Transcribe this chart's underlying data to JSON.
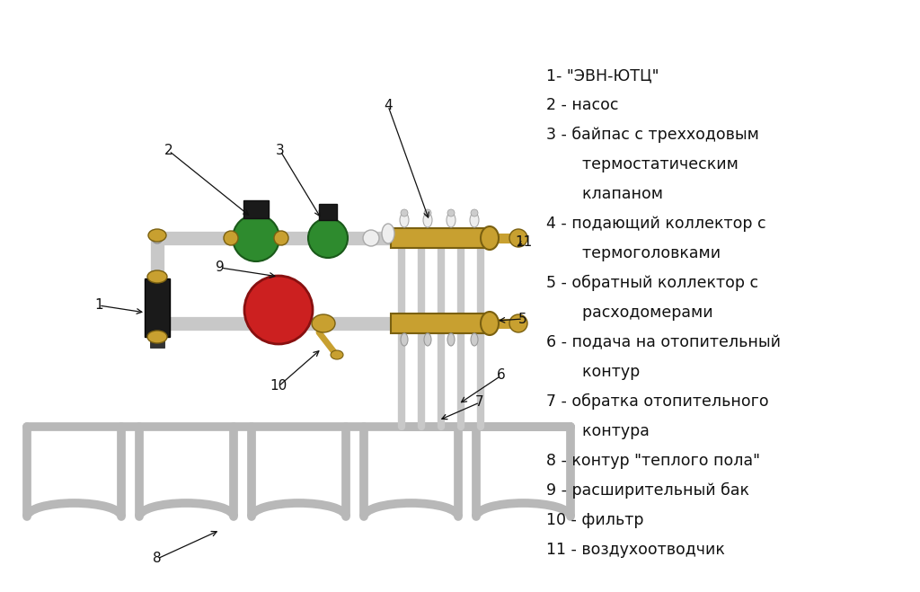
{
  "background_color": "#ffffff",
  "pipe_color": "#c8c8c8",
  "pipe_edge": "#909090",
  "brass_color": "#c8a030",
  "brass_edge": "#7a6010",
  "green_color": "#2e8b2e",
  "green_edge": "#1a5a1a",
  "red_color": "#cc2020",
  "red_edge": "#881010",
  "black_color": "#1a1a1a",
  "white_color": "#eeeeee",
  "label_color": "#111111",
  "label_fontsize": 12.5,
  "legend_entries": [
    [
      "1- \"ЭВН-ЮТЦ\"",
      0
    ],
    [
      "2 - насос",
      0
    ],
    [
      "3 - байпас с трехходовым",
      0
    ],
    [
      "    термостатическим",
      1
    ],
    [
      "    клапаном",
      1
    ],
    [
      "4 - подающий коллектор с",
      0
    ],
    [
      "    термоголовками",
      1
    ],
    [
      "5 - обратный коллектор с",
      0
    ],
    [
      "    расходомерами",
      1
    ],
    [
      "6 - подача на отопительный",
      0
    ],
    [
      "    контур",
      1
    ],
    [
      "7 - обратка отопительного",
      0
    ],
    [
      "    контура",
      1
    ],
    [
      "8 - контур \"теплого пола\"",
      0
    ],
    [
      "9 - расширительный бак",
      0
    ],
    [
      "10 - фильтр",
      0
    ],
    [
      "11 - воздухоотводчик",
      0
    ]
  ]
}
